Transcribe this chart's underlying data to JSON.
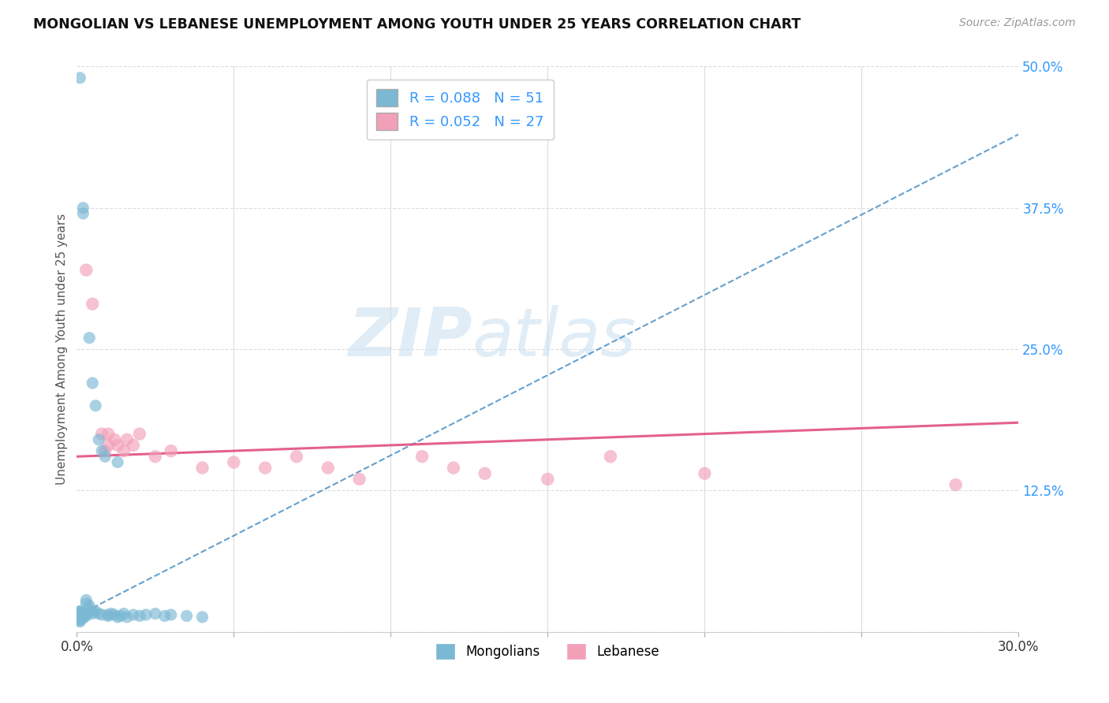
{
  "title": "MONGOLIAN VS LEBANESE UNEMPLOYMENT AMONG YOUTH UNDER 25 YEARS CORRELATION CHART",
  "source": "Source: ZipAtlas.com",
  "ylabel": "Unemployment Among Youth under 25 years",
  "xlim": [
    0.0,
    0.3
  ],
  "ylim": [
    0.0,
    0.5
  ],
  "xticks": [
    0.0,
    0.05,
    0.1,
    0.15,
    0.2,
    0.25,
    0.3
  ],
  "mongolian_R": 0.088,
  "mongolian_N": 51,
  "lebanese_R": 0.052,
  "lebanese_N": 27,
  "mongolian_color": "#7bb8d4",
  "lebanese_color": "#f2a0b8",
  "trend_mongolian_color": "#4a90c4",
  "trend_lebanese_color": "#e05080",
  "mongolian_x": [
    0.001,
    0.001,
    0.001,
    0.001,
    0.001,
    0.001,
    0.001,
    0.001,
    0.001,
    0.002,
    0.002,
    0.002,
    0.002,
    0.002,
    0.002,
    0.003,
    0.003,
    0.003,
    0.003,
    0.004,
    0.004,
    0.004,
    0.005,
    0.005,
    0.005,
    0.006,
    0.006,
    0.007,
    0.007,
    0.008,
    0.008,
    0.009,
    0.01,
    0.01,
    0.011,
    0.012,
    0.013,
    0.013,
    0.014,
    0.015,
    0.016,
    0.018,
    0.02,
    0.022,
    0.025,
    0.028,
    0.03,
    0.035,
    0.04,
    0.001,
    0.001
  ],
  "mongolian_y": [
    0.49,
    0.015,
    0.016,
    0.017,
    0.018,
    0.012,
    0.013,
    0.01,
    0.011,
    0.375,
    0.37,
    0.015,
    0.014,
    0.013,
    0.012,
    0.028,
    0.025,
    0.015,
    0.014,
    0.26,
    0.023,
    0.02,
    0.22,
    0.018,
    0.016,
    0.2,
    0.018,
    0.17,
    0.016,
    0.16,
    0.015,
    0.155,
    0.015,
    0.014,
    0.016,
    0.015,
    0.15,
    0.013,
    0.014,
    0.016,
    0.013,
    0.015,
    0.014,
    0.015,
    0.016,
    0.014,
    0.015,
    0.014,
    0.013,
    0.018,
    0.009
  ],
  "lebanese_x": [
    0.003,
    0.005,
    0.008,
    0.009,
    0.01,
    0.01,
    0.012,
    0.013,
    0.015,
    0.016,
    0.018,
    0.02,
    0.025,
    0.03,
    0.04,
    0.05,
    0.06,
    0.07,
    0.08,
    0.09,
    0.11,
    0.12,
    0.13,
    0.15,
    0.17,
    0.2,
    0.28
  ],
  "lebanese_y": [
    0.32,
    0.29,
    0.175,
    0.16,
    0.175,
    0.165,
    0.17,
    0.165,
    0.16,
    0.17,
    0.165,
    0.175,
    0.155,
    0.16,
    0.145,
    0.15,
    0.145,
    0.155,
    0.145,
    0.135,
    0.155,
    0.145,
    0.14,
    0.135,
    0.155,
    0.14,
    0.13
  ],
  "watermark_zip": "ZIP",
  "watermark_atlas": "atlas",
  "background_color": "#ffffff",
  "grid_color": "#dddddd"
}
